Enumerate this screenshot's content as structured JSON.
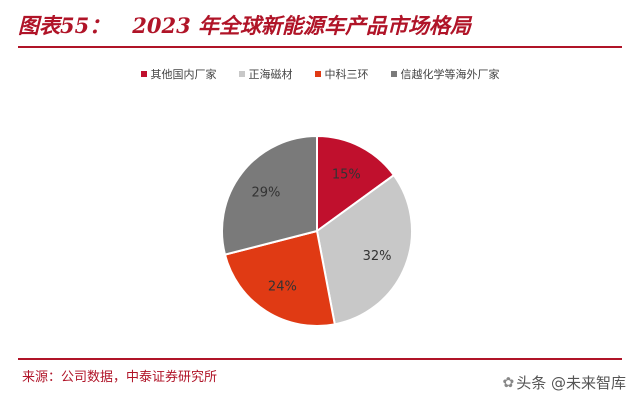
{
  "header": {
    "figure_label": "图表55：",
    "title": "2023 年全球新能源车产品市场格局"
  },
  "chart_data": {
    "type": "pie",
    "title": "2023 年全球新能源车产品市场格局",
    "legend_position": "top",
    "slices": [
      {
        "name": "其他国内厂家",
        "value": 15,
        "label": "15%",
        "color": "#c0102d"
      },
      {
        "name": "正海磁材",
        "value": 32,
        "label": "32%",
        "color": "#c8c8c8"
      },
      {
        "name": "中科三环",
        "value": 24,
        "label": "24%",
        "color": "#e03a14"
      },
      {
        "name": "信越化学等海外厂家",
        "value": 29,
        "label": "29%",
        "color": "#7a7a7a"
      }
    ]
  },
  "footer": {
    "source": "来源：公司数据，中泰证券研究所",
    "watermark": "头条 @未来智库"
  }
}
